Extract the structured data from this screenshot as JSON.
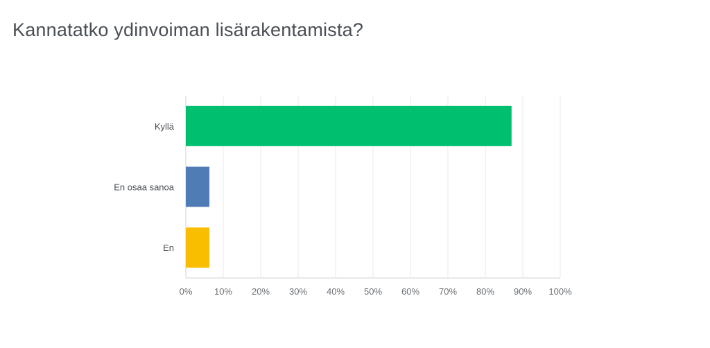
{
  "question": {
    "title": "Kannatatko ydinvoiman lisärakentamista?"
  },
  "chart_data": {
    "type": "bar",
    "orientation": "horizontal",
    "categories": [
      "Kyllä",
      "En osaa sanoa",
      "En"
    ],
    "values": [
      87,
      6.3,
      6.3
    ],
    "unit": "%",
    "xlim": [
      0,
      100
    ],
    "xticks": [
      "0%",
      "10%",
      "20%",
      "30%",
      "40%",
      "50%",
      "60%",
      "70%",
      "80%",
      "90%",
      "100%"
    ],
    "colors": [
      "#00bf6f",
      "#507cb6",
      "#f9be00"
    ],
    "grid": true,
    "legend": "none"
  }
}
